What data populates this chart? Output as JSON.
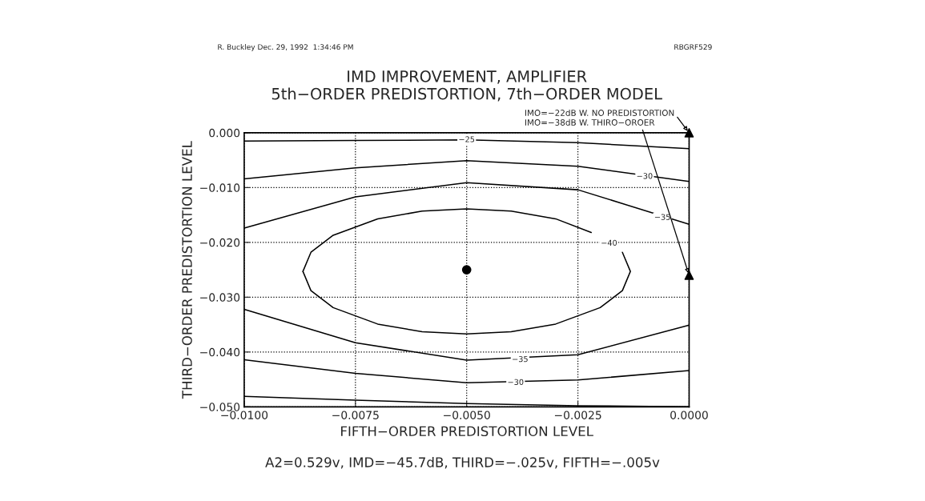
{
  "chart_data": {
    "type": "line",
    "title": "IMD IMPROVEMENT, AMPLIFIER",
    "subtitle": "5th−ORDER PREDISTORTION, 7th−ORDER MODEL",
    "xlabel": "FIFTH−ORDER PREDISTORTION LEVEL",
    "ylabel": "THIRD−ORDER PREDISTORTION LEVEL",
    "xlim": [
      -0.01,
      0.0
    ],
    "ylim": [
      -0.05,
      0.0
    ],
    "xticks": [
      {
        "value": -0.01,
        "label": "−0.0100"
      },
      {
        "value": -0.0075,
        "label": "−0.0075"
      },
      {
        "value": -0.005,
        "label": "−0.0050"
      },
      {
        "value": -0.0025,
        "label": "−0.0025"
      },
      {
        "value": 0.0,
        "label": "0.0000"
      }
    ],
    "yticks": [
      {
        "value": 0.0,
        "label": "0.000"
      },
      {
        "value": -0.01,
        "label": "−0.010"
      },
      {
        "value": -0.02,
        "label": "−0.020"
      },
      {
        "value": -0.03,
        "label": "−0.030"
      },
      {
        "value": -0.04,
        "label": "−0.040"
      },
      {
        "value": -0.05,
        "label": "−0.050"
      }
    ],
    "grid": true,
    "legend": false,
    "line_style": "solid",
    "marker": "none",
    "series": [
      {
        "color": "#000000",
        "x": [
          -0.01,
          -0.0075,
          -0.005,
          -0.0025,
          0.0
        ],
        "values": [
          -0.0015,
          -0.0014,
          -0.0013,
          -0.0018,
          -0.0029
        ]
      },
      {
        "color": "#000000",
        "x": [
          -0.01,
          -0.0075,
          -0.005,
          -0.0025,
          0.0
        ],
        "values": [
          -0.0481,
          -0.0488,
          -0.0494,
          -0.0498,
          -0.05
        ]
      },
      {
        "color": "#000000",
        "x": [
          -0.01,
          -0.0075,
          -0.005,
          -0.0025,
          0.0
        ],
        "values": [
          -0.0084,
          -0.0064,
          -0.0051,
          -0.0061,
          -0.0089
        ]
      },
      {
        "color": "#000000",
        "x": [
          -0.01,
          -0.0075,
          -0.005,
          -0.0025,
          0.0
        ],
        "values": [
          -0.0414,
          -0.0439,
          -0.0456,
          -0.0451,
          -0.0434
        ]
      },
      {
        "color": "#000000",
        "x": [
          -0.01,
          -0.0075,
          -0.005,
          -0.0025,
          0.0
        ],
        "values": [
          -0.0174,
          -0.0117,
          -0.0091,
          -0.0104,
          -0.0167
        ]
      },
      {
        "color": "#000000",
        "x": [
          -0.01,
          -0.0075,
          -0.005,
          -0.0025,
          0.0
        ],
        "values": [
          -0.0322,
          -0.0383,
          -0.0415,
          -0.0405,
          -0.0351
        ]
      },
      {
        "color": "#000000",
        "x": [
          -0.00868,
          -0.0085,
          -0.008,
          -0.007,
          -0.006,
          -0.005,
          -0.004,
          -0.003,
          -0.0022
        ],
        "values": [
          -0.0253,
          -0.0218,
          -0.0187,
          -0.0157,
          -0.0143,
          -0.0139,
          -0.0143,
          -0.0157,
          -0.0182
        ]
      },
      {
        "color": "#000000",
        "x": [
          -0.0015,
          -0.00132,
          -0.0015,
          -0.002,
          -0.003,
          -0.004,
          -0.005,
          -0.006,
          -0.007,
          -0.008,
          -0.0085,
          -0.00868
        ],
        "values": [
          -0.0218,
          -0.0253,
          -0.0288,
          -0.0319,
          -0.0349,
          -0.0363,
          -0.0367,
          -0.0363,
          -0.0349,
          -0.0319,
          -0.0288,
          -0.0253
        ]
      },
      {
        "type": "scatter",
        "marker": "circle",
        "color": "#000000",
        "x": [
          -0.005
        ],
        "values": [
          -0.025
        ]
      },
      {
        "type": "scatter",
        "marker": "triangle",
        "color": "#000000",
        "x": [
          0.0,
          0.0
        ],
        "values": [
          0.0,
          -0.026
        ]
      }
    ],
    "annotations": [
      "R. Buckley Dec. 29, 1992  1:34:46 PM",
      "RBGRF529",
      "A2=0.529v, IMD=−45.7dB, THIRD=−.025v, FIFTH=−.005v",
      {
        "text": "−25",
        "x": -0.005,
        "y": -0.0013
      },
      {
        "text": "−30",
        "x": -0.001,
        "y": -0.008
      },
      {
        "text": "−30",
        "x": -0.0039,
        "y": -0.0456
      },
      {
        "text": "−35",
        "x": -0.0006,
        "y": -0.0155
      },
      {
        "text": "−35",
        "x": -0.0038,
        "y": -0.0414
      },
      {
        "text": "−40",
        "x": -0.0018,
        "y": -0.0202
      },
      {
        "text": "IMO=−22dB W. NO PREDISTORTION",
        "x": 0.0,
        "y": 0.0
      },
      {
        "text": "IMO=−38dB W. THIRO−OROER",
        "x": 0.0,
        "y": -0.026
      }
    ]
  }
}
